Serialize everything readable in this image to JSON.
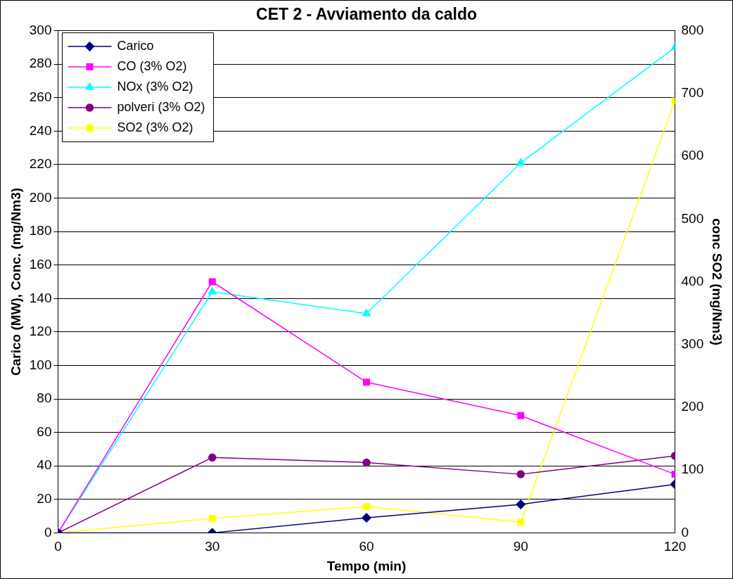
{
  "chart_data": {
    "type": "line",
    "title": "CET 2 - Avviamento da caldo",
    "xlabel": "Tempo (min)",
    "ylabel": "Carico (MW), Conc. (mg/Nm3)",
    "y2label": "conc SO2 (mg/Nm3)",
    "x": [
      0,
      30,
      60,
      90,
      120
    ],
    "xlim": [
      0,
      120
    ],
    "xticks": [
      0,
      30,
      60,
      90,
      120
    ],
    "ylim": [
      0,
      300
    ],
    "yticks": [
      0,
      20,
      40,
      60,
      80,
      100,
      120,
      140,
      160,
      180,
      200,
      220,
      240,
      260,
      280,
      300
    ],
    "y2lim": [
      0,
      800
    ],
    "y2ticks": [
      0,
      100,
      200,
      300,
      400,
      500,
      600,
      700,
      800
    ],
    "grid": "y",
    "legend": "top left",
    "series": [
      {
        "name": "Carico",
        "color": "#000080",
        "marker": "diamond",
        "values": [
          0,
          0,
          9,
          17,
          29
        ]
      },
      {
        "name": "CO (3% O2)",
        "color": "#ff00ff",
        "marker": "square",
        "values": [
          0,
          150,
          90,
          70,
          35
        ]
      },
      {
        "name": "NOx (3% O2)",
        "color": "#00ffff",
        "marker": "triangle",
        "values": [
          0,
          144,
          131,
          221,
          290
        ]
      },
      {
        "name": "polveri (3% O2)",
        "color": "#800080",
        "marker": "circle",
        "values": [
          0,
          45,
          42,
          35,
          46
        ]
      },
      {
        "name": "SO2 (3% O2)",
        "color": "#ffff00",
        "marker": "square",
        "axis": "y2",
        "values": [
          0,
          23,
          42,
          17,
          688
        ]
      }
    ]
  }
}
